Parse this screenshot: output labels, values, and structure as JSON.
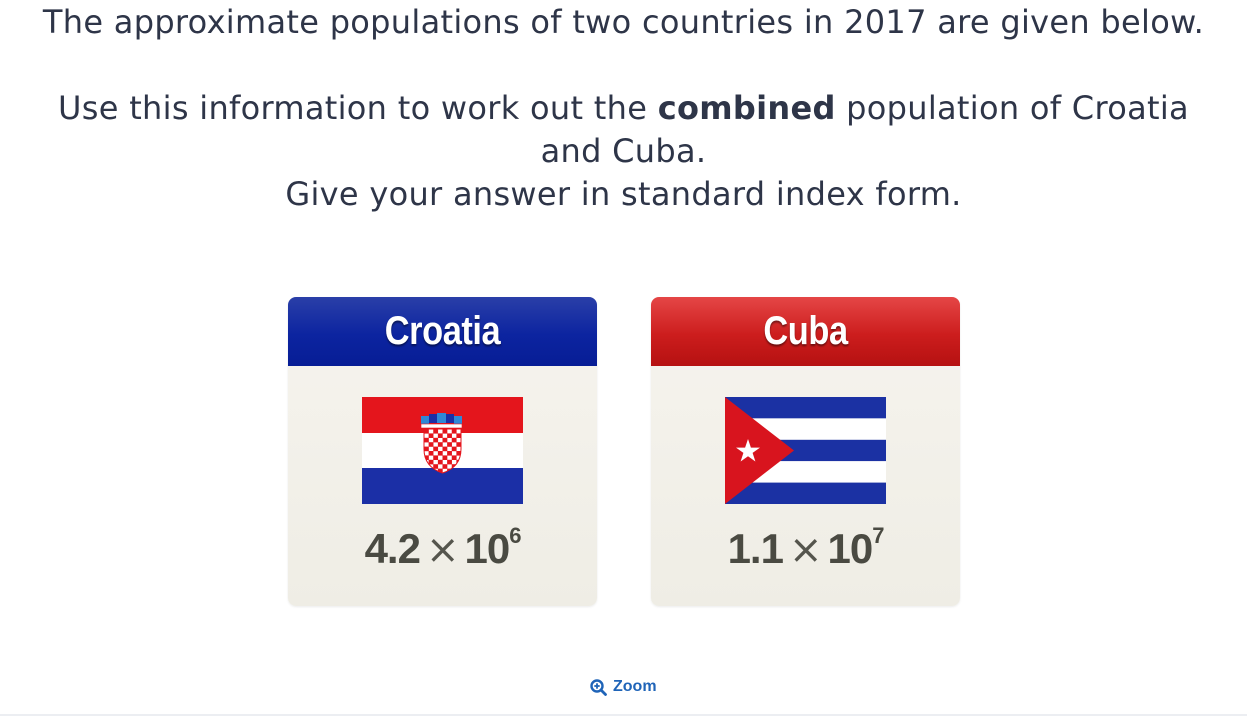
{
  "question": {
    "line1": "The approximate populations of two countries in 2017 are given below.",
    "line2_before": "Use this information to work out the ",
    "line2_bold": "combined",
    "line2_after": " population of Croatia",
    "line2_cont": "and Cuba.",
    "line3": "Give your answer in standard index form."
  },
  "cards": {
    "croatia": {
      "name": "Croatia",
      "mantissa": "4.2",
      "times": "×",
      "base": "10",
      "exponent": "6",
      "flag_icon": "croatia-flag",
      "header_color": "#0c24a0"
    },
    "cuba": {
      "name": "Cuba",
      "mantissa": "1.1",
      "times": "×",
      "base": "10",
      "exponent": "7",
      "flag_icon": "cuba-flag",
      "header_color": "#cc1d1d"
    }
  },
  "zoom": {
    "label": "Zoom",
    "icon": "zoom-in-icon",
    "color": "#1f64b8"
  }
}
